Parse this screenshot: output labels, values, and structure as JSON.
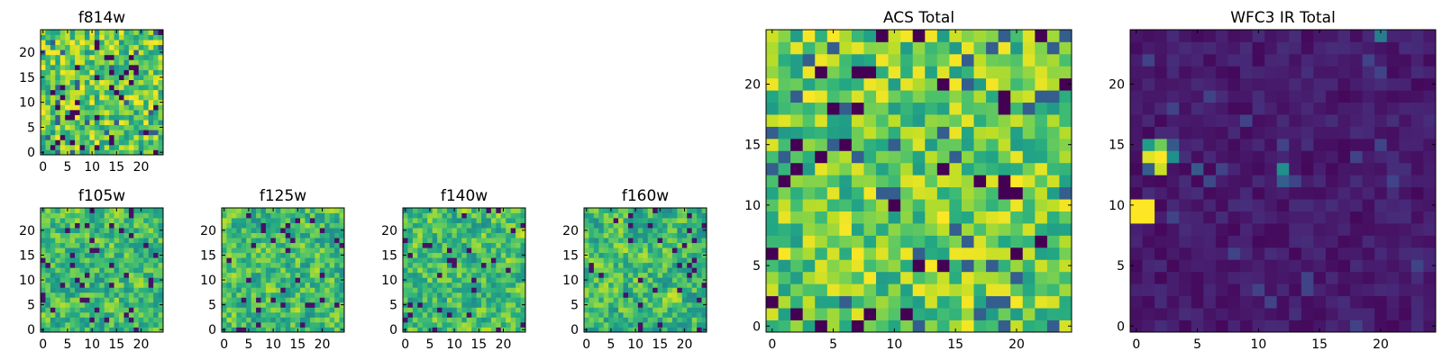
{
  "chart_data": [
    {
      "type": "heatmap",
      "title": "f814w",
      "grid_size": 25,
      "colormap": "viridis",
      "xticks": [
        "0",
        "5",
        "10",
        "15",
        "20"
      ],
      "yticks": [
        "0",
        "5",
        "10",
        "15",
        "20"
      ],
      "xlim": [
        0,
        24
      ],
      "ylim": [
        0,
        24
      ],
      "value_range": [
        0,
        1
      ],
      "texture": "noise",
      "seed": 11
    },
    {
      "type": "heatmap",
      "title": "f105w",
      "grid_size": 25,
      "colormap": "viridis",
      "xticks": [
        "0",
        "5",
        "10",
        "15",
        "20"
      ],
      "yticks": [
        "0",
        "5",
        "10",
        "15",
        "20"
      ],
      "xlim": [
        0,
        24
      ],
      "ylim": [
        0,
        24
      ],
      "value_range": [
        0,
        1
      ],
      "texture": "smooth",
      "seed": 23
    },
    {
      "type": "heatmap",
      "title": "f125w",
      "grid_size": 25,
      "colormap": "viridis",
      "xticks": [
        "0",
        "5",
        "10",
        "15",
        "20"
      ],
      "yticks": [
        "0",
        "5",
        "10",
        "15",
        "20"
      ],
      "xlim": [
        0,
        24
      ],
      "ylim": [
        0,
        24
      ],
      "value_range": [
        0,
        1
      ],
      "texture": "smooth",
      "seed": 37
    },
    {
      "type": "heatmap",
      "title": "f140w",
      "grid_size": 25,
      "colormap": "viridis",
      "xticks": [
        "0",
        "5",
        "10",
        "15",
        "20"
      ],
      "yticks": [
        "0",
        "5",
        "10",
        "15",
        "20"
      ],
      "xlim": [
        0,
        24
      ],
      "ylim": [
        0,
        24
      ],
      "value_range": [
        0,
        1
      ],
      "texture": "smooth",
      "seed": 41
    },
    {
      "type": "heatmap",
      "title": "f160w",
      "grid_size": 25,
      "colormap": "viridis",
      "xticks": [
        "0",
        "5",
        "10",
        "15",
        "20"
      ],
      "yticks": [
        "0",
        "5",
        "10",
        "15",
        "20"
      ],
      "xlim": [
        0,
        24
      ],
      "ylim": [
        0,
        24
      ],
      "value_range": [
        0,
        1
      ],
      "texture": "smooth",
      "seed": 53
    },
    {
      "type": "heatmap",
      "title": "ACS Total",
      "grid_size": 25,
      "colormap": "viridis",
      "xticks": [
        "0",
        "5",
        "10",
        "15",
        "20"
      ],
      "yticks": [
        "0",
        "5",
        "10",
        "15",
        "20"
      ],
      "xlim": [
        0,
        24
      ],
      "ylim": [
        0,
        24
      ],
      "value_range": [
        0,
        1
      ],
      "texture": "noise-bright",
      "seed": 67
    },
    {
      "type": "heatmap",
      "title": "WFC3 IR Total",
      "grid_size": 25,
      "colormap": "viridis",
      "xticks": [
        "0",
        "5",
        "10",
        "15",
        "20"
      ],
      "yticks": [
        "0",
        "5",
        "10",
        "15",
        "20"
      ],
      "xlim": [
        0,
        24
      ],
      "ylim": [
        0,
        24
      ],
      "value_range": [
        0,
        1
      ],
      "texture": "dark",
      "seed": 79,
      "bright_cells": [
        {
          "x": 0,
          "y": 9,
          "value": 1.0
        },
        {
          "x": 0,
          "y": 10,
          "value": 1.0
        },
        {
          "x": 1,
          "y": 9,
          "value": 1.0
        },
        {
          "x": 1,
          "y": 10,
          "value": 1.0
        },
        {
          "x": 1,
          "y": 14,
          "value": 0.95
        },
        {
          "x": 2,
          "y": 14,
          "value": 1.0
        },
        {
          "x": 2,
          "y": 13,
          "value": 0.92
        },
        {
          "x": 2,
          "y": 15,
          "value": 0.78
        },
        {
          "x": 1,
          "y": 15,
          "value": 0.55
        },
        {
          "x": 3,
          "y": 14,
          "value": 0.5
        },
        {
          "x": 1,
          "y": 13,
          "value": 0.3
        },
        {
          "x": 3,
          "y": 15,
          "value": 0.28
        },
        {
          "x": 12,
          "y": 13,
          "value": 0.5
        },
        {
          "x": 12,
          "y": 12,
          "value": 0.3
        },
        {
          "x": 5,
          "y": 13,
          "value": 0.28
        },
        {
          "x": 6,
          "y": 12,
          "value": 0.22
        },
        {
          "x": 20,
          "y": 24,
          "value": 0.42
        },
        {
          "x": 18,
          "y": 14,
          "value": 0.2
        },
        {
          "x": 9,
          "y": 17,
          "value": 0.2
        }
      ]
    }
  ]
}
